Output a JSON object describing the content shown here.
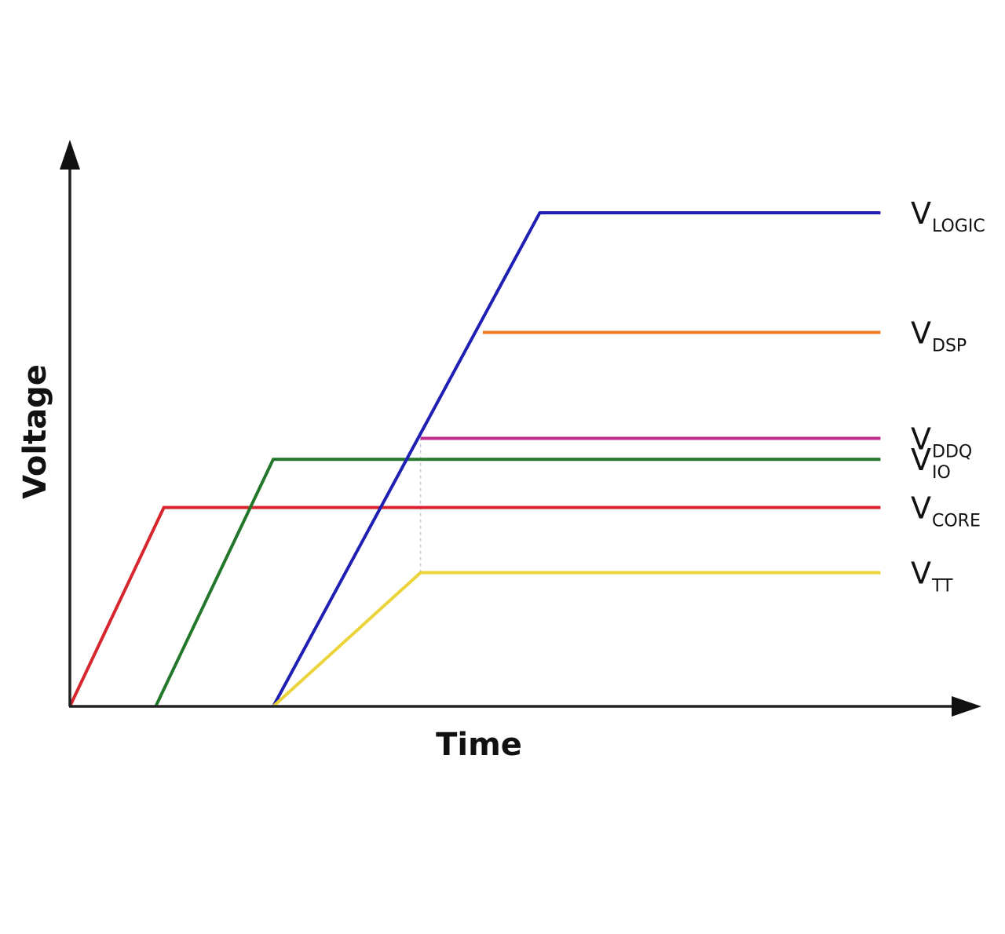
{
  "chart_data": {
    "type": "line",
    "title": "",
    "xlabel": "Time",
    "ylabel": "Voltage",
    "xlim": [
      0,
      100
    ],
    "ylim": [
      0,
      100
    ],
    "grid": false,
    "legend": "inline-right",
    "series": [
      {
        "name": "V_CORE",
        "label_main": "V",
        "label_sub": "CORE",
        "color": "#d7262e",
        "x": [
          0,
          10.4,
          89.7
        ],
        "y": [
          0,
          35.1,
          35.1
        ]
      },
      {
        "name": "V_IO",
        "label_main": "V",
        "label_sub": "IO",
        "color": "#22772a",
        "x": [
          9.5,
          22.5,
          89.7
        ],
        "y": [
          0,
          43.6,
          43.6
        ]
      },
      {
        "name": "V_LOGIC",
        "label_main": "V",
        "label_sub": "LOGIC",
        "color": "#1f1fb4",
        "x": [
          22.5,
          52.0,
          89.7
        ],
        "y": [
          0,
          87.1,
          87.1
        ]
      },
      {
        "name": "V_DSP",
        "label_main": "V",
        "label_sub": "DSP",
        "color": "#ee7a22",
        "x": [
          45.7,
          89.7
        ],
        "y": [
          66.0,
          66.0
        ]
      },
      {
        "name": "V_DDQ",
        "label_main": "V",
        "label_sub": "DDQ",
        "color": "#c22a8e",
        "x": [
          38.8,
          89.7
        ],
        "y": [
          47.3,
          47.3
        ]
      },
      {
        "name": "V_TT",
        "label_main": "V",
        "label_sub": "TT",
        "color": "#ebd43a",
        "x": [
          22.5,
          38.8,
          89.7
        ],
        "y": [
          0,
          23.6,
          23.6
        ]
      }
    ],
    "annotations": [
      {
        "type": "dashed-vertical",
        "x": 38.8,
        "y": [
          23.6,
          47.3
        ],
        "color": "#c8c8d8"
      }
    ]
  }
}
